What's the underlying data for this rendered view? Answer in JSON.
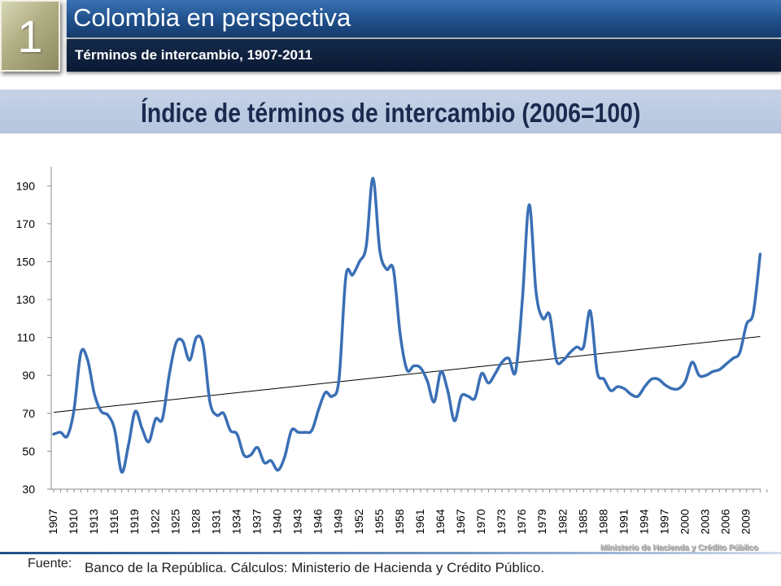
{
  "header": {
    "badge_number": "1",
    "title": "Colombia en perspectiva",
    "subtitle": "Términos de intercambio, 1907-2011"
  },
  "heading": "Índice de términos de intercambio (2006=100)",
  "footer": {
    "source_label": "Fuente:",
    "source_text": "Banco de la República. Cálculos: Ministerio de Hacienda y Crédito Público.",
    "ministry_mark": "Ministerio de Hacienda y Crédito Público"
  },
  "colors": {
    "line": "#3a6fb5",
    "trend": "#000000"
  },
  "chart_data": {
    "type": "line",
    "title": "Índice de términos de intercambio (2006=100)",
    "xlabel": "",
    "ylabel": "",
    "ylim": [
      30,
      200
    ],
    "yticks": [
      30,
      50,
      70,
      90,
      110,
      130,
      150,
      170,
      190
    ],
    "xlim": [
      1907,
      2012
    ],
    "xticks": [
      1907,
      1910,
      1913,
      1916,
      1919,
      1922,
      1925,
      1928,
      1931,
      1934,
      1937,
      1940,
      1943,
      1946,
      1949,
      1952,
      1955,
      1958,
      1961,
      1964,
      1967,
      1970,
      1973,
      1976,
      1979,
      1982,
      1985,
      1988,
      1991,
      1994,
      1997,
      2000,
      2003,
      2006,
      2009
    ],
    "grid": false,
    "legend": "none",
    "series": [
      {
        "x": [
          1907,
          1908,
          1909,
          1910,
          1911,
          1912,
          1913,
          1914,
          1915,
          1916,
          1917,
          1918,
          1919,
          1920,
          1921,
          1922,
          1923,
          1924,
          1925,
          1926,
          1927,
          1928,
          1929,
          1930,
          1931,
          1932,
          1933,
          1934,
          1935,
          1936,
          1937,
          1938,
          1939,
          1940,
          1941,
          1942,
          1943,
          1944,
          1945,
          1946,
          1947,
          1948,
          1949,
          1950,
          1951,
          1952,
          1953,
          1954,
          1955,
          1956,
          1957,
          1958,
          1959,
          1960,
          1961,
          1962,
          1963,
          1964,
          1965,
          1966,
          1967,
          1968,
          1969,
          1970,
          1971,
          1972,
          1973,
          1974,
          1975,
          1976,
          1977,
          1978,
          1979,
          1980,
          1981,
          1982,
          1983,
          1984,
          1985,
          1986,
          1987,
          1988,
          1989,
          1990,
          1991,
          1992,
          1993,
          1994,
          1995,
          1996,
          1997,
          1998,
          1999,
          2000,
          2001,
          2002,
          2003,
          2004,
          2005,
          2006,
          2007,
          2008,
          2009,
          2010,
          2011
        ],
        "values": [
          59,
          60,
          58,
          72,
          102,
          98,
          80,
          71,
          69,
          61,
          39,
          53,
          71,
          62,
          55,
          67,
          67,
          90,
          107,
          108,
          98,
          110,
          106,
          76,
          69,
          70,
          61,
          59,
          48,
          48,
          52,
          44,
          45,
          40,
          47,
          61,
          60,
          60,
          61,
          72,
          81,
          79,
          88,
          142,
          143,
          150,
          158,
          194,
          156,
          146,
          146,
          112,
          93,
          95,
          94,
          87,
          76,
          92,
          82,
          66,
          79,
          79,
          78,
          91,
          86,
          91,
          97,
          99,
          92,
          130,
          180,
          134,
          120,
          122,
          98,
          98,
          102,
          105,
          105,
          124,
          92,
          88,
          82,
          84,
          83,
          80,
          79,
          84,
          88,
          88,
          85,
          83,
          83,
          87,
          97,
          90,
          90,
          92,
          93,
          96,
          99,
          102,
          117,
          123,
          154
        ]
      }
    ],
    "trendline": {
      "x": [
        1907,
        2011
      ],
      "y": [
        70.5,
        110.5
      ]
    }
  }
}
